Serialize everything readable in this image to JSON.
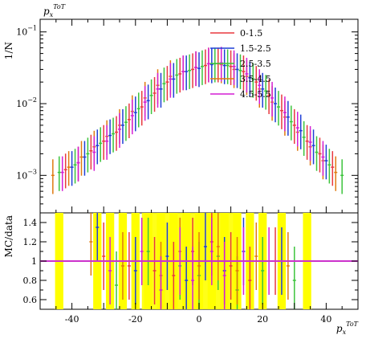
{
  "chart_data": [
    {
      "type": "scatter",
      "panel": "main",
      "ylabel": "1/N",
      "yscale": "log",
      "ylim": [
        0.0003,
        0.15
      ],
      "xlim": [
        -50,
        50
      ],
      "y_ticks": [
        {
          "value": 0.1,
          "label_base": "10",
          "label_exp": "−1"
        },
        {
          "value": 0.01,
          "label_base": "10",
          "label_exp": "−2"
        },
        {
          "value": 0.001,
          "label_base": "10",
          "label_exp": "−3"
        }
      ],
      "legend_placement": "top-right",
      "series": [
        {
          "name": "0-1.5",
          "color": "#e8393f",
          "x": [
            -42,
            -38,
            -34,
            -30,
            -26,
            -22,
            -18,
            -14,
            -10,
            -6,
            -2,
            2,
            6,
            10,
            14,
            18,
            22,
            26,
            30,
            34,
            38,
            42
          ],
          "y": [
            0.0012,
            0.0015,
            0.0022,
            0.003,
            0.004,
            0.006,
            0.009,
            0.014,
            0.02,
            0.026,
            0.03,
            0.034,
            0.036,
            0.033,
            0.028,
            0.02,
            0.013,
            0.008,
            0.005,
            0.003,
            0.002,
            0.0013
          ]
        },
        {
          "name": "1.5-2.5",
          "color": "#1f3fd6",
          "x": [
            -40,
            -36,
            -32,
            -28,
            -24,
            -20,
            -16,
            -12,
            -8,
            -4,
            0,
            4,
            8,
            12,
            16,
            20,
            24,
            28,
            32,
            36,
            40
          ],
          "y": [
            0.0013,
            0.0018,
            0.0026,
            0.0036,
            0.005,
            0.0075,
            0.011,
            0.016,
            0.022,
            0.028,
            0.031,
            0.035,
            0.034,
            0.03,
            0.023,
            0.016,
            0.01,
            0.0065,
            0.0042,
            0.0026,
            0.0016
          ]
        },
        {
          "name": "2.5-3.5",
          "color": "#3cc43c",
          "x": [
            -44,
            -39,
            -35,
            -31,
            -27,
            -23,
            -19,
            -15,
            -11,
            -7,
            -3,
            1,
            5,
            9,
            13,
            17,
            21,
            25,
            29,
            33,
            37,
            41,
            45
          ],
          "y": [
            0.0011,
            0.0014,
            0.002,
            0.0028,
            0.0038,
            0.0055,
            0.0085,
            0.013,
            0.019,
            0.025,
            0.029,
            0.033,
            0.036,
            0.034,
            0.029,
            0.022,
            0.015,
            0.009,
            0.0056,
            0.0034,
            0.0021,
            0.0014,
            0.001
          ]
        },
        {
          "name": "3.5-4.5",
          "color": "#e07a10",
          "x": [
            -46,
            -41,
            -37,
            -33,
            -29,
            -25,
            -21,
            -17,
            -13,
            -9,
            -5,
            -1,
            3,
            7,
            11,
            15,
            19,
            23,
            27,
            31,
            35,
            39,
            43
          ],
          "y": [
            0.001,
            0.0013,
            0.0018,
            0.0025,
            0.0035,
            0.005,
            0.0078,
            0.012,
            0.018,
            0.024,
            0.028,
            0.032,
            0.036,
            0.035,
            0.03,
            0.024,
            0.016,
            0.0105,
            0.0065,
            0.004,
            0.0025,
            0.0016,
            0.0011
          ]
        },
        {
          "name": "4.5-5.5",
          "color": "#d41fd4",
          "x": [
            -43,
            -38,
            -33,
            -29,
            -25,
            -21,
            -17,
            -13,
            -9,
            -5,
            -1,
            3,
            7,
            11,
            15,
            19,
            23,
            27,
            31,
            35,
            39
          ],
          "y": [
            0.0011,
            0.0015,
            0.0021,
            0.003,
            0.0044,
            0.0068,
            0.0105,
            0.016,
            0.022,
            0.028,
            0.032,
            0.036,
            0.037,
            0.033,
            0.026,
            0.018,
            0.012,
            0.0075,
            0.0046,
            0.0029,
            0.0018
          ]
        }
      ]
    },
    {
      "type": "scatter",
      "panel": "ratio",
      "ylabel": "MC/data",
      "ylim": [
        0.5,
        1.5
      ],
      "xlim": [
        -50,
        50
      ],
      "xlabel_base": "p",
      "xlabel_sub": "x",
      "xlabel_sup": "ToT",
      "x_ticks": [
        -40,
        -20,
        0,
        20,
        40
      ],
      "y_ticks": [
        0.6,
        0.8,
        1,
        1.2,
        1.4
      ],
      "reference_line": {
        "value": 1,
        "color": "#cc33cc"
      },
      "uncertainty_band_color": "#ffff00",
      "series": [
        {
          "name": "0-1.5",
          "color": "#e8393f",
          "x": [
            -30,
            -22,
            -14,
            -8,
            -2,
            4,
            10,
            16,
            24
          ],
          "y": [
            1.05,
            0.95,
            0.9,
            0.85,
            1.1,
            1.2,
            0.95,
            0.8,
            1.0
          ]
        },
        {
          "name": "1.5-2.5",
          "color": "#1f3fd6",
          "x": [
            -32,
            -20,
            -10,
            -4,
            2,
            8,
            14,
            26
          ],
          "y": [
            1.35,
            0.9,
            1.05,
            0.8,
            1.15,
            0.9,
            1.1,
            1.0
          ]
        },
        {
          "name": "2.5-3.5",
          "color": "#3cc43c",
          "x": [
            -26,
            -16,
            -6,
            0,
            6,
            12,
            20,
            30
          ],
          "y": [
            0.75,
            1.1,
            0.95,
            0.85,
            1.05,
            0.7,
            0.9,
            0.8
          ]
        },
        {
          "name": "3.5-4.5",
          "color": "#e07a10",
          "x": [
            -34,
            -24,
            -12,
            -6,
            0,
            6,
            12,
            18,
            28
          ],
          "y": [
            1.2,
            0.95,
            0.85,
            1.1,
            0.95,
            1.15,
            0.9,
            1.05,
            0.95
          ]
        },
        {
          "name": "4.5-5.5",
          "color": "#d41fd4",
          "x": [
            -28,
            -18,
            -12,
            -6,
            -2,
            4,
            8,
            14,
            22
          ],
          "y": [
            0.9,
            1.1,
            0.7,
            1.0,
            0.8,
            1.1,
            0.85,
            1.0,
            1.0
          ]
        }
      ]
    }
  ],
  "header": {
    "ylabel_top_base": "p",
    "ylabel_top_sub": "x",
    "ylabel_top_sup": "ToT"
  }
}
